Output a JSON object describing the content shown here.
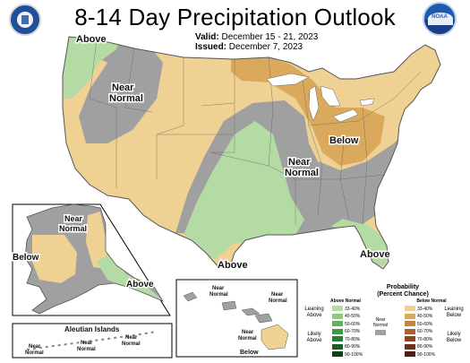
{
  "header": {
    "title": "8-14 Day Precipitation Outlook",
    "valid_label": "Valid:",
    "valid_value": "December 15 - 21, 2023",
    "issued_label": "Issued:",
    "issued_value": "December 7, 2023"
  },
  "logos": {
    "left": "seal-icon",
    "right": "noaa-logo",
    "noaa_text": "NOAA"
  },
  "map_labels": {
    "above_nw": "Above",
    "near_normal_1": "Near",
    "near_normal_1b": "Normal",
    "near_normal_2": "Near",
    "near_normal_2b": "Normal",
    "below_ne": "Below",
    "above_south": "Above",
    "above_fl": "Above",
    "ak_near": "Near",
    "ak_normal": "Normal",
    "ak_below": "Below",
    "ak_above": "Above",
    "aleutian_title": "Aleutian Islands",
    "aleutian_near_1": "Near",
    "aleutian_normal_1": "Normal",
    "aleutian_near_2": "Near",
    "aleutian_normal_2": "Normal",
    "aleutian_near_3": "Near",
    "aleutian_normal_3": "Normal",
    "hi_near_1": "Near",
    "hi_normal_1": "Normal",
    "hi_near_2": "Near",
    "hi_normal_2": "Normal",
    "hi_near_3": "Near",
    "hi_normal_3": "Normal",
    "hi_below": "Below"
  },
  "legend": {
    "title": "Probability",
    "subtitle": "(Percent Chance)",
    "above_header": "Above Normal",
    "below_header": "Below Normal",
    "near_label_1": "Near",
    "near_label_2": "Normal",
    "leaning_above_1": "Leaning",
    "leaning_above_2": "Above",
    "likely_above_1": "Likely",
    "likely_above_2": "Above",
    "leaning_below_1": "Leaning",
    "leaning_below_2": "Below",
    "likely_below_1": "Likely",
    "likely_below_2": "Below",
    "above_bins": [
      {
        "range": "33-40%",
        "color": "#b5dba4"
      },
      {
        "range": "40-50%",
        "color": "#8ec97d"
      },
      {
        "range": "50-60%",
        "color": "#5fb35a"
      },
      {
        "range": "60-70%",
        "color": "#3c9a43"
      },
      {
        "range": "70-80%",
        "color": "#277f34"
      },
      {
        "range": "80-90%",
        "color": "#185f23"
      },
      {
        "range": "90-100%",
        "color": "#0d4217"
      }
    ],
    "below_bins": [
      {
        "range": "33-40%",
        "color": "#efd194"
      },
      {
        "range": "40-50%",
        "color": "#dba95c"
      },
      {
        "range": "50-60%",
        "color": "#c8833d"
      },
      {
        "range": "60-70%",
        "color": "#ad5f2c"
      },
      {
        "range": "70-80%",
        "color": "#8d4423"
      },
      {
        "range": "80-90%",
        "color": "#6e2f1b"
      },
      {
        "range": "90-100%",
        "color": "#4f1e12"
      }
    ],
    "near_color": "#a0a0a0"
  },
  "colors": {
    "leaning_above": "#b5dba4",
    "leaning_below": "#efd194",
    "below_40_50": "#dba95c",
    "near_normal": "#a0a0a0",
    "border": "#555555"
  }
}
